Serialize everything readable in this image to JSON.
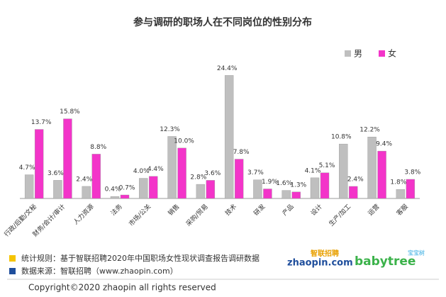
{
  "chart_data": {
    "type": "bar",
    "title": "参与调研的职场人在不同岗位的性别分布",
    "categories": [
      "行政/后勤/文秘",
      "财务/会计/审计",
      "人力资源",
      "法务",
      "市场/公关",
      "销售",
      "采购/贸易",
      "技术",
      "研发",
      "产品",
      "设计",
      "生产/加工",
      "运营",
      "客服"
    ],
    "series": [
      {
        "name": "男",
        "color": "#bfbfbf",
        "values": [
          4.7,
          3.6,
          2.4,
          0.4,
          4.0,
          12.3,
          2.8,
          24.4,
          3.7,
          1.6,
          4.1,
          10.8,
          12.2,
          1.8
        ],
        "value_labels": [
          "4.7%",
          "3.6%",
          "2.4%",
          "0.4%",
          "4.0%",
          "12.3%",
          "2.8%",
          "24.4%",
          "3.7%",
          "1.6%",
          "4.1%",
          "10.8%",
          "12.2%",
          "1.8%"
        ]
      },
      {
        "name": "女",
        "color": "#f334c9",
        "values": [
          13.7,
          15.8,
          8.8,
          0.7,
          4.4,
          10.0,
          3.6,
          7.8,
          1.9,
          1.3,
          5.1,
          2.4,
          9.4,
          3.8
        ],
        "value_labels": [
          "13.7%",
          "15.8%",
          "8.8%",
          "0.7%",
          "4.4%",
          "10.0%",
          "3.6%",
          "7.8%",
          "1.9%",
          "1.3%",
          "5.1%",
          "2.4%",
          "9.4%",
          "3.8%"
        ]
      }
    ],
    "ylim": [
      0,
      26
    ],
    "legend": "top-right"
  },
  "footer": {
    "rule": "统计规则：基于智联招聘2020年中国职场女性现状调查报告调研数据",
    "source": "数据来源：智联招聘（www.zhaopin.com）",
    "copyright": "Copyright©2020 zhaopin all rights reserved",
    "logo1_top": "智联招聘",
    "logo1": "zhaopin.com",
    "logo2_top": "宝宝树",
    "logo2": "babytree"
  }
}
